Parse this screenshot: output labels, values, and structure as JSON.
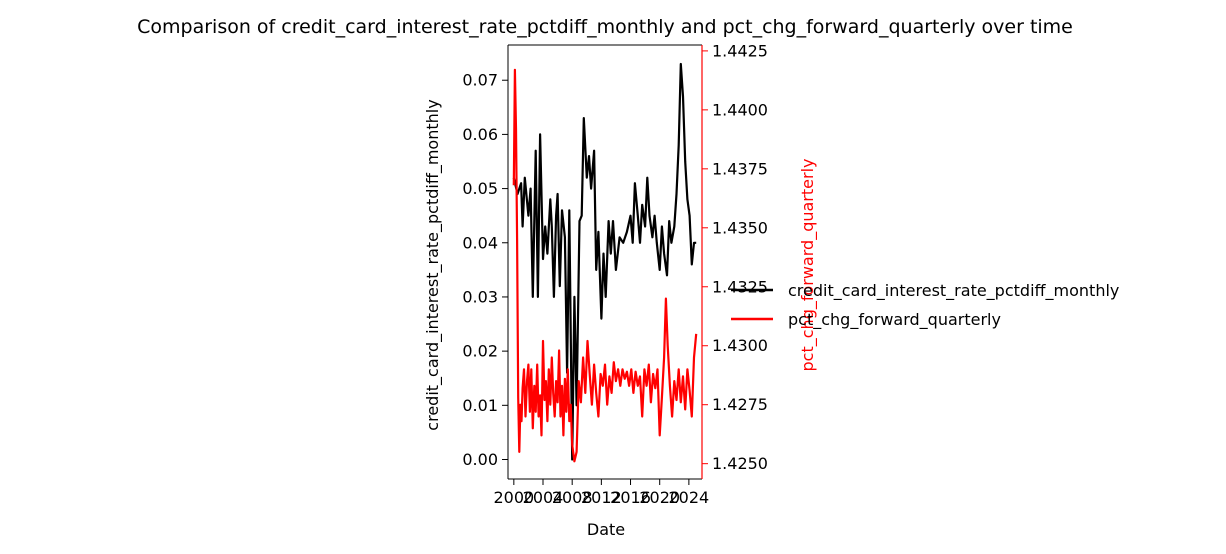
{
  "chart_data": {
    "type": "line",
    "title": "Comparison of credit_card_interest_rate_pctdiff_monthly and pct_chg_forward_quarterly over time",
    "xlabel": "Date",
    "ylabel_left": "credit_card_interest_rate_pctdiff_monthly",
    "ylabel_right": "pct_chg_forward_quarterly",
    "x_ticks": [
      "2000",
      "2004",
      "2008",
      "2012",
      "2016",
      "2020",
      "2024"
    ],
    "y_left_ticks": [
      "0.00",
      "0.01",
      "0.02",
      "0.03",
      "0.04",
      "0.05",
      "0.06",
      "0.07"
    ],
    "y_right_ticks": [
      "1.4250",
      "1.4275",
      "1.4300",
      "1.4325",
      "1.4350",
      "1.4375",
      "1.4400",
      "1.4425"
    ],
    "xlim": [
      1999.2,
      2025.8
    ],
    "ylim_left": [
      -0.0036,
      0.0765
    ],
    "ylim_right": [
      1.42435,
      1.44275
    ],
    "legend_position": "center-right outside",
    "colors": {
      "series_left": "#000000",
      "series_right": "#ff0000",
      "right_axis": "#ff0000"
    },
    "series": [
      {
        "name": "credit_card_interest_rate_pctdiff_monthly",
        "axis": "left",
        "color": "#000000",
        "points": [
          [
            2000.0,
            0.052
          ],
          [
            2000.5,
            0.049
          ],
          [
            2001.0,
            0.051
          ],
          [
            2001.2,
            0.043
          ],
          [
            2001.5,
            0.052
          ],
          [
            2002.0,
            0.045
          ],
          [
            2002.3,
            0.05
          ],
          [
            2002.6,
            0.03
          ],
          [
            2003.0,
            0.057
          ],
          [
            2003.3,
            0.03
          ],
          [
            2003.6,
            0.06
          ],
          [
            2004.0,
            0.037
          ],
          [
            2004.3,
            0.043
          ],
          [
            2004.6,
            0.038
          ],
          [
            2005.0,
            0.048
          ],
          [
            2005.2,
            0.043
          ],
          [
            2005.5,
            0.03
          ],
          [
            2005.8,
            0.045
          ],
          [
            2006.0,
            0.049
          ],
          [
            2006.3,
            0.032
          ],
          [
            2006.6,
            0.046
          ],
          [
            2007.0,
            0.041
          ],
          [
            2007.3,
            0.016
          ],
          [
            2007.6,
            0.046
          ],
          [
            2008.0,
            0.0
          ],
          [
            2008.3,
            0.03
          ],
          [
            2008.6,
            0.01
          ],
          [
            2009.0,
            0.044
          ],
          [
            2009.3,
            0.045
          ],
          [
            2009.6,
            0.063
          ],
          [
            2010.0,
            0.052
          ],
          [
            2010.3,
            0.056
          ],
          [
            2010.6,
            0.05
          ],
          [
            2011.0,
            0.057
          ],
          [
            2011.3,
            0.035
          ],
          [
            2011.6,
            0.042
          ],
          [
            2012.0,
            0.026
          ],
          [
            2012.3,
            0.038
          ],
          [
            2012.6,
            0.03
          ],
          [
            2013.0,
            0.044
          ],
          [
            2013.3,
            0.038
          ],
          [
            2013.6,
            0.044
          ],
          [
            2014.0,
            0.035
          ],
          [
            2014.5,
            0.041
          ],
          [
            2015.0,
            0.04
          ],
          [
            2015.5,
            0.042
          ],
          [
            2016.0,
            0.045
          ],
          [
            2016.3,
            0.04
          ],
          [
            2016.6,
            0.051
          ],
          [
            2017.0,
            0.045
          ],
          [
            2017.3,
            0.04
          ],
          [
            2017.6,
            0.047
          ],
          [
            2018.0,
            0.043
          ],
          [
            2018.3,
            0.052
          ],
          [
            2018.6,
            0.045
          ],
          [
            2019.0,
            0.041
          ],
          [
            2019.3,
            0.045
          ],
          [
            2019.6,
            0.04
          ],
          [
            2020.0,
            0.035
          ],
          [
            2020.3,
            0.043
          ],
          [
            2020.6,
            0.038
          ],
          [
            2021.0,
            0.034
          ],
          [
            2021.3,
            0.044
          ],
          [
            2021.6,
            0.04
          ],
          [
            2022.0,
            0.043
          ],
          [
            2022.3,
            0.049
          ],
          [
            2022.6,
            0.058
          ],
          [
            2022.9,
            0.073
          ],
          [
            2023.2,
            0.067
          ],
          [
            2023.5,
            0.055
          ],
          [
            2023.8,
            0.048
          ],
          [
            2024.1,
            0.045
          ],
          [
            2024.4,
            0.036
          ],
          [
            2024.7,
            0.04
          ],
          [
            2025.0,
            0.04
          ]
        ]
      },
      {
        "name": "pct_chg_forward_quarterly",
        "axis": "right",
        "color": "#ff0000",
        "points": [
          [
            2000.0,
            1.4368
          ],
          [
            2000.15,
            1.4417
          ],
          [
            2000.3,
            1.4392
          ],
          [
            2000.45,
            1.4345
          ],
          [
            2000.6,
            1.4278
          ],
          [
            2000.75,
            1.4255
          ],
          [
            2000.9,
            1.4275
          ],
          [
            2001.05,
            1.4268
          ],
          [
            2001.2,
            1.4282
          ],
          [
            2001.4,
            1.429
          ],
          [
            2001.6,
            1.427
          ],
          [
            2001.8,
            1.4285
          ],
          [
            2002.0,
            1.4292
          ],
          [
            2002.2,
            1.4272
          ],
          [
            2002.4,
            1.429
          ],
          [
            2002.6,
            1.4265
          ],
          [
            2002.8,
            1.4283
          ],
          [
            2003.0,
            1.4272
          ],
          [
            2003.2,
            1.4292
          ],
          [
            2003.4,
            1.427
          ],
          [
            2003.6,
            1.4279
          ],
          [
            2003.8,
            1.4262
          ],
          [
            2004.0,
            1.4302
          ],
          [
            2004.2,
            1.4277
          ],
          [
            2004.4,
            1.4285
          ],
          [
            2004.6,
            1.4268
          ],
          [
            2004.8,
            1.429
          ],
          [
            2005.0,
            1.4275
          ],
          [
            2005.2,
            1.4295
          ],
          [
            2005.4,
            1.428
          ],
          [
            2005.6,
            1.427
          ],
          [
            2005.8,
            1.4285
          ],
          [
            2006.0,
            1.4276
          ],
          [
            2006.2,
            1.4298
          ],
          [
            2006.4,
            1.427
          ],
          [
            2006.6,
            1.4283
          ],
          [
            2006.8,
            1.4262
          ],
          [
            2007.0,
            1.4286
          ],
          [
            2007.2,
            1.4272
          ],
          [
            2007.4,
            1.429
          ],
          [
            2007.6,
            1.4268
          ],
          [
            2007.8,
            1.4275
          ],
          [
            2008.0,
            1.4258
          ],
          [
            2008.3,
            1.4251
          ],
          [
            2008.6,
            1.4255
          ],
          [
            2008.9,
            1.4285
          ],
          [
            2009.2,
            1.4276
          ],
          [
            2009.5,
            1.4295
          ],
          [
            2009.8,
            1.428
          ],
          [
            2010.1,
            1.4302
          ],
          [
            2010.4,
            1.4288
          ],
          [
            2010.7,
            1.4275
          ],
          [
            2011.0,
            1.4292
          ],
          [
            2011.3,
            1.428
          ],
          [
            2011.6,
            1.427
          ],
          [
            2011.9,
            1.4288
          ],
          [
            2012.2,
            1.4283
          ],
          [
            2012.5,
            1.4292
          ],
          [
            2012.8,
            1.4275
          ],
          [
            2013.1,
            1.4287
          ],
          [
            2013.4,
            1.428
          ],
          [
            2013.7,
            1.4293
          ],
          [
            2014.0,
            1.4285
          ],
          [
            2014.3,
            1.429
          ],
          [
            2014.6,
            1.4283
          ],
          [
            2014.9,
            1.429
          ],
          [
            2015.2,
            1.4286
          ],
          [
            2015.5,
            1.4289
          ],
          [
            2015.8,
            1.4283
          ],
          [
            2016.1,
            1.429
          ],
          [
            2016.4,
            1.428
          ],
          [
            2016.7,
            1.4289
          ],
          [
            2017.0,
            1.4283
          ],
          [
            2017.3,
            1.4287
          ],
          [
            2017.6,
            1.427
          ],
          [
            2017.9,
            1.429
          ],
          [
            2018.2,
            1.4283
          ],
          [
            2018.5,
            1.4292
          ],
          [
            2018.8,
            1.4276
          ],
          [
            2019.1,
            1.4288
          ],
          [
            2019.4,
            1.4282
          ],
          [
            2019.7,
            1.429
          ],
          [
            2020.0,
            1.4262
          ],
          [
            2020.3,
            1.4278
          ],
          [
            2020.6,
            1.4295
          ],
          [
            2020.85,
            1.432
          ],
          [
            2021.1,
            1.43
          ],
          [
            2021.4,
            1.4283
          ],
          [
            2021.7,
            1.427
          ],
          [
            2022.0,
            1.4285
          ],
          [
            2022.3,
            1.4277
          ],
          [
            2022.6,
            1.429
          ],
          [
            2022.9,
            1.4276
          ],
          [
            2023.2,
            1.4287
          ],
          [
            2023.5,
            1.4273
          ],
          [
            2023.8,
            1.429
          ],
          [
            2024.1,
            1.4281
          ],
          [
            2024.4,
            1.427
          ],
          [
            2024.7,
            1.4295
          ],
          [
            2025.0,
            1.4305
          ]
        ]
      }
    ]
  }
}
